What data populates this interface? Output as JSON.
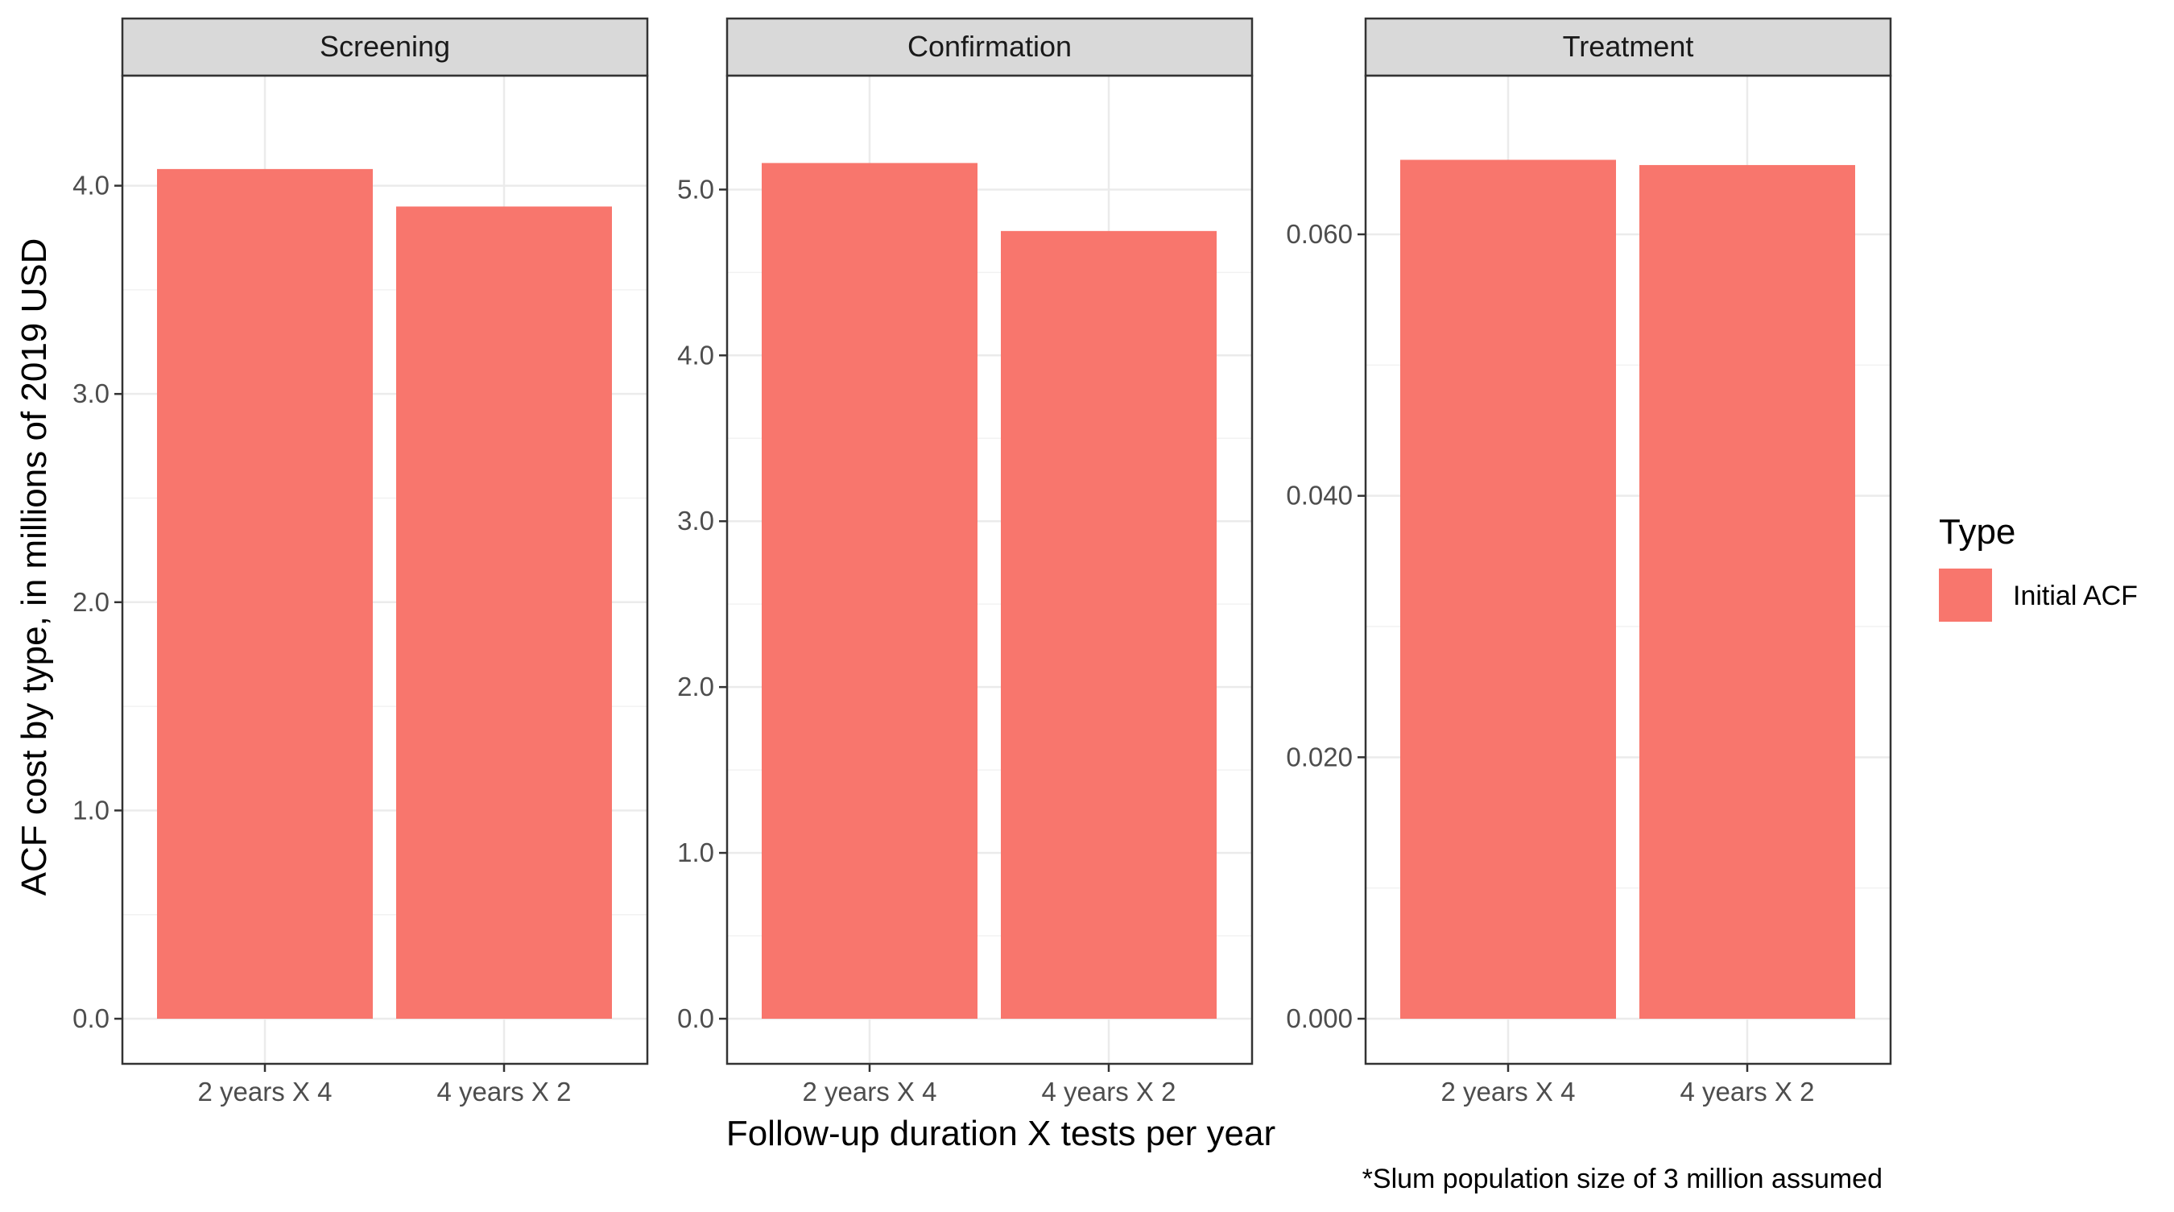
{
  "chart_data": {
    "type": "bar",
    "facet_by": "cost type",
    "categories": [
      "2 years X 4",
      "4 years X 2"
    ],
    "xlabel": "Follow-up duration X tests per year",
    "ylabel": "ACF cost by type, in millions of 2019 USD",
    "caption": "*Slum population size of 3 million assumed",
    "legend": {
      "title": "Type",
      "position": "right",
      "entries": [
        {
          "label": "Initial ACF",
          "color": "#F8766D"
        }
      ]
    },
    "grid": true,
    "panels": [
      {
        "strip": "Screening",
        "ylim": [
          0,
          4.3
        ],
        "yticks": [
          0,
          1,
          2,
          3,
          4
        ],
        "ytick_labels": [
          "0.0",
          "1.0",
          "2.0",
          "3.0",
          "4.0"
        ],
        "series": [
          {
            "name": "Initial ACF",
            "values": [
              4.08,
              3.9
            ]
          }
        ]
      },
      {
        "strip": "Confirmation",
        "ylim": [
          0,
          5.4
        ],
        "yticks": [
          0,
          1,
          2,
          3,
          4,
          5
        ],
        "ytick_labels": [
          "0.0",
          "1.0",
          "2.0",
          "3.0",
          "4.0",
          "5.0"
        ],
        "series": [
          {
            "name": "Initial ACF",
            "values": [
              5.16,
              4.75
            ]
          }
        ]
      },
      {
        "strip": "Treatment",
        "ylim": [
          0,
          0.0685
        ],
        "yticks": [
          0,
          0.02,
          0.04,
          0.06
        ],
        "ytick_labels": [
          "0.000",
          "0.020",
          "0.040",
          "0.060"
        ],
        "series": [
          {
            "name": "Initial ACF",
            "values": [
              0.0657,
              0.0653
            ]
          }
        ]
      }
    ]
  }
}
